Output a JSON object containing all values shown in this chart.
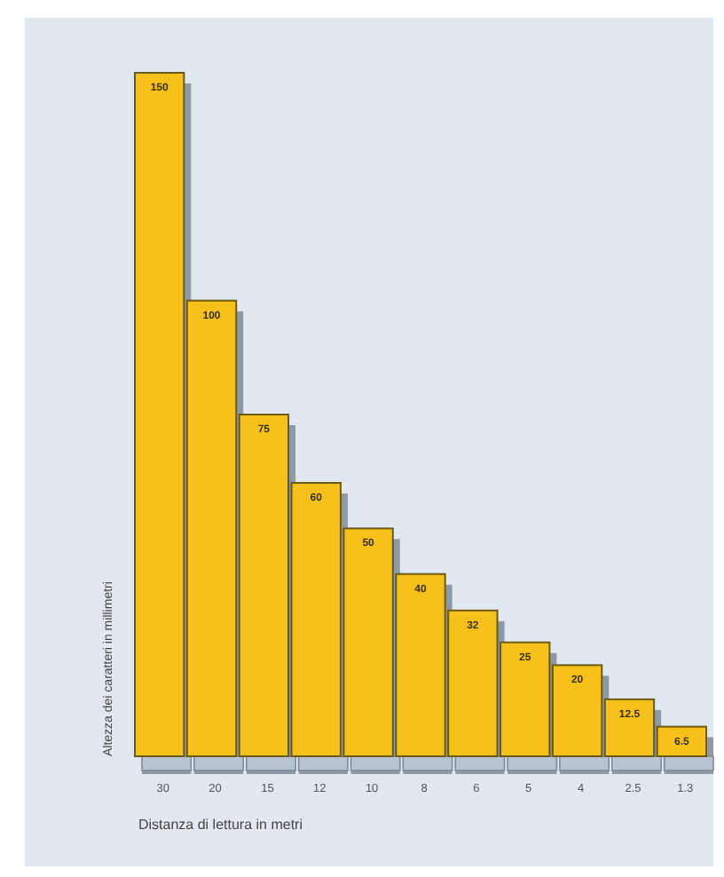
{
  "chart_data": {
    "type": "bar",
    "xlabel": "Distanza di lettura in metri",
    "ylabel": "Altezza dei caratteri in millimetri",
    "categories": [
      "30",
      "20",
      "15",
      "12",
      "10",
      "8",
      "6",
      "5",
      "4",
      "2.5",
      "1.3"
    ],
    "values": [
      150,
      100,
      75,
      60,
      50,
      40,
      32,
      25,
      20,
      12.5,
      6.5
    ],
    "color": "#f5c11a",
    "data_labels": true
  }
}
